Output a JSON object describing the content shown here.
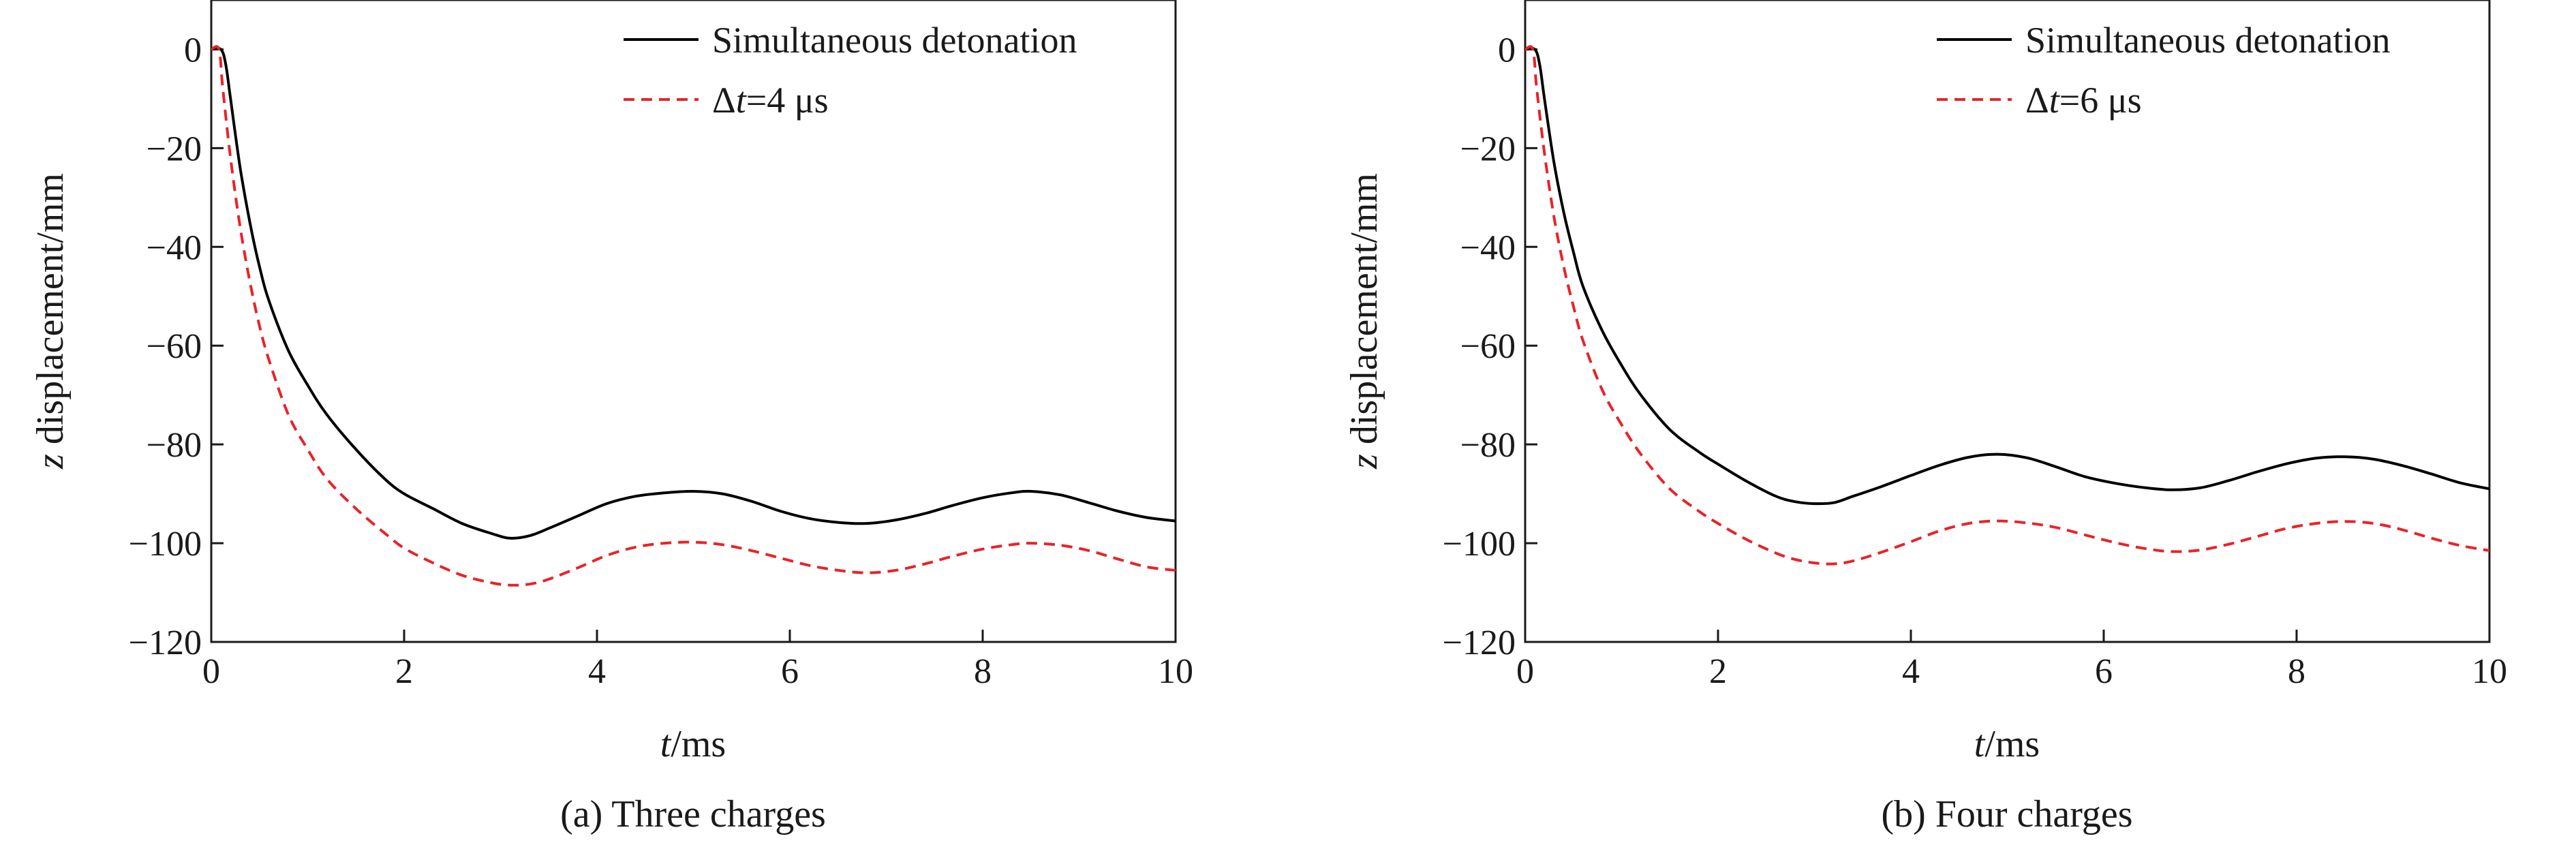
{
  "chart_data": [
    {
      "type": "line",
      "caption": "(a) Three charges",
      "xlabel_var": "t",
      "xlabel_unit": "/ms",
      "ylabel_var": "z",
      "ylabel_unit": " displacement/mm",
      "xlim": [
        0,
        10
      ],
      "ylim": [
        -120,
        10
      ],
      "xticks": [
        0,
        2,
        4,
        6,
        8,
        10
      ],
      "yticks": [
        0,
        -20,
        -40,
        -60,
        -80,
        -100,
        -120
      ],
      "grid": false,
      "legend_position": "top-right",
      "series": [
        {
          "label_plain": "Simultaneous detonation",
          "color": "#000000",
          "dashed": false,
          "x": [
            0,
            0.1,
            0.15,
            0.2,
            0.3,
            0.4,
            0.5,
            0.6,
            0.8,
            1.0,
            1.2,
            1.5,
            1.8,
            2.0,
            2.3,
            2.6,
            2.9,
            3.1,
            3.3,
            3.5,
            3.8,
            4.1,
            4.4,
            4.7,
            5.0,
            5.3,
            5.6,
            5.9,
            6.2,
            6.5,
            6.8,
            7.1,
            7.4,
            7.7,
            8.0,
            8.3,
            8.5,
            8.8,
            9.1,
            9.4,
            9.7,
            10.0
          ],
          "y": [
            0,
            0,
            -3,
            -10,
            -24,
            -35,
            -44,
            -51,
            -61,
            -68,
            -74,
            -81,
            -87,
            -90,
            -93,
            -96,
            -98,
            -99,
            -98.5,
            -97,
            -94.5,
            -92,
            -90.5,
            -89.8,
            -89.5,
            -90,
            -91.5,
            -93.5,
            -95,
            -95.8,
            -96,
            -95.3,
            -94,
            -92.3,
            -90.8,
            -89.8,
            -89.5,
            -90.2,
            -91.8,
            -93.5,
            -94.8,
            -95.5
          ]
        },
        {
          "label_pre": "Δ",
          "label_var": "t",
          "label_post": "=4 μs",
          "color": "#e8232a",
          "dashed": true,
          "x": [
            0,
            0.08,
            0.12,
            0.2,
            0.3,
            0.4,
            0.5,
            0.6,
            0.8,
            1.0,
            1.2,
            1.5,
            1.8,
            2.0,
            2.3,
            2.6,
            2.9,
            3.1,
            3.3,
            3.5,
            3.8,
            4.1,
            4.4,
            4.7,
            5.0,
            5.3,
            5.6,
            5.9,
            6.2,
            6.5,
            6.8,
            7.1,
            7.4,
            7.7,
            8.0,
            8.3,
            8.5,
            8.8,
            9.1,
            9.4,
            9.7,
            10.0
          ],
          "y": [
            0,
            0,
            -8,
            -22,
            -36,
            -47,
            -56,
            -63,
            -74,
            -81,
            -87,
            -93,
            -98,
            -101,
            -104,
            -106.5,
            -108,
            -108.5,
            -108.3,
            -107.3,
            -105,
            -102.5,
            -100.8,
            -100,
            -99.8,
            -100.3,
            -101.5,
            -103,
            -104.5,
            -105.5,
            -106,
            -105.5,
            -104.2,
            -102.6,
            -101.2,
            -100.3,
            -100,
            -100.4,
            -101.5,
            -103.2,
            -104.8,
            -105.5
          ]
        }
      ]
    },
    {
      "type": "line",
      "caption": "(b) Four charges",
      "xlabel_var": "t",
      "xlabel_unit": "/ms",
      "ylabel_var": "z",
      "ylabel_unit": " displacement/mm",
      "xlim": [
        0,
        10
      ],
      "ylim": [
        -120,
        10
      ],
      "xticks": [
        0,
        2,
        4,
        6,
        8,
        10
      ],
      "yticks": [
        0,
        -20,
        -40,
        -60,
        -80,
        -100,
        -120
      ],
      "grid": false,
      "legend_position": "top-right",
      "series": [
        {
          "label_plain": "Simultaneous detonation",
          "color": "#000000",
          "dashed": false,
          "x": [
            0,
            0.1,
            0.15,
            0.2,
            0.3,
            0.4,
            0.5,
            0.6,
            0.8,
            1.0,
            1.2,
            1.5,
            1.8,
            2.0,
            2.3,
            2.6,
            2.8,
            3.0,
            3.2,
            3.4,
            3.7,
            4.0,
            4.3,
            4.6,
            4.9,
            5.2,
            5.5,
            5.8,
            6.1,
            6.4,
            6.7,
            7.0,
            7.3,
            7.6,
            7.9,
            8.2,
            8.5,
            8.8,
            9.1,
            9.4,
            9.7,
            10.0
          ],
          "y": [
            0,
            0,
            -3,
            -10,
            -23,
            -33,
            -41,
            -48,
            -57,
            -64,
            -70,
            -77,
            -81.5,
            -84,
            -87.5,
            -90.5,
            -91.6,
            -92,
            -91.8,
            -90.5,
            -88.5,
            -86.3,
            -84.2,
            -82.6,
            -82,
            -82.7,
            -84.5,
            -86.5,
            -87.8,
            -88.7,
            -89.2,
            -88.8,
            -87.3,
            -85.5,
            -83.9,
            -82.8,
            -82.5,
            -83,
            -84.3,
            -86,
            -87.8,
            -89
          ]
        },
        {
          "label_pre": "Δ",
          "label_var": "t",
          "label_post": "=6 μs",
          "color": "#e8232a",
          "dashed": true,
          "x": [
            0,
            0.08,
            0.12,
            0.2,
            0.3,
            0.4,
            0.5,
            0.6,
            0.8,
            1.0,
            1.2,
            1.5,
            1.8,
            2.0,
            2.3,
            2.6,
            2.8,
            3.0,
            3.2,
            3.4,
            3.7,
            4.0,
            4.3,
            4.6,
            4.9,
            5.2,
            5.5,
            5.8,
            6.1,
            6.4,
            6.7,
            7.0,
            7.3,
            7.6,
            7.9,
            8.2,
            8.5,
            8.8,
            9.1,
            9.4,
            9.7,
            10.0
          ],
          "y": [
            0,
            0,
            -8,
            -21,
            -34,
            -44,
            -52,
            -59,
            -69,
            -76,
            -82,
            -89,
            -93.5,
            -96,
            -99.3,
            -102,
            -103.3,
            -104,
            -104.2,
            -103.6,
            -101.8,
            -99.7,
            -97.5,
            -96,
            -95.5,
            -95.9,
            -96.8,
            -98.3,
            -99.8,
            -101,
            -101.7,
            -101.4,
            -100.2,
            -98.6,
            -97,
            -96,
            -95.6,
            -96,
            -97.3,
            -99,
            -100.5,
            -101.5
          ]
        }
      ]
    }
  ]
}
